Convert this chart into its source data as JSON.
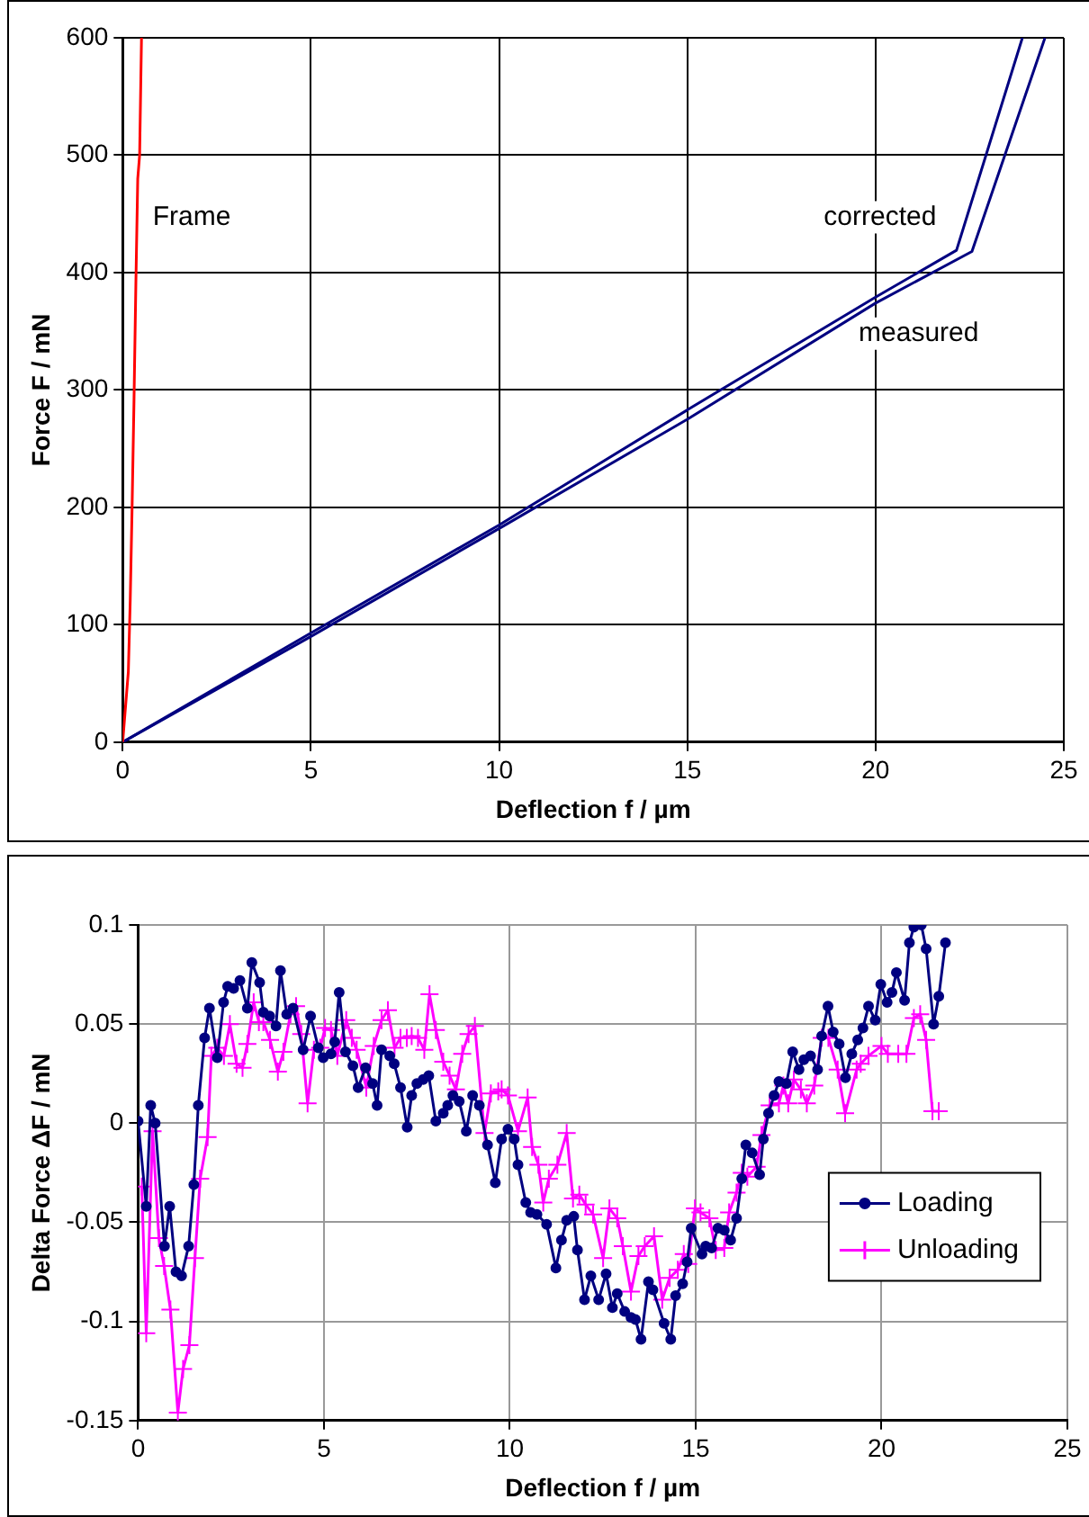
{
  "chart_data": [
    {
      "type": "line",
      "xlabel": "Deflection f / µm",
      "ylabel": "Force F / mN",
      "xlim": [
        0,
        25
      ],
      "ylim": [
        0,
        600
      ],
      "xticks": [
        0,
        5,
        10,
        15,
        20,
        25
      ],
      "yticks": [
        0,
        100,
        200,
        300,
        400,
        500,
        600
      ],
      "grid": true,
      "marker": "none",
      "line_style": "solid",
      "series": [
        {
          "name": "Frame",
          "color": "#ff0000",
          "x": [
            0,
            0.1,
            0.15,
            0.2,
            0.25,
            0.3,
            0.35,
            0.4,
            0.45,
            0.5
          ],
          "values": [
            0,
            40,
            60,
            120,
            200,
            290,
            390,
            480,
            500,
            600
          ]
        },
        {
          "name": "corrected",
          "color": "#000080",
          "x": [
            0,
            5,
            10,
            15,
            20,
            22.15,
            23.9
          ],
          "values": [
            0,
            93,
            185,
            283,
            379,
            419,
            600
          ]
        },
        {
          "name": "measured",
          "color": "#000080",
          "x": [
            0,
            5,
            10,
            15,
            20,
            22.56,
            24.5
          ],
          "values": [
            0,
            90,
            182,
            275,
            374,
            418,
            600
          ]
        }
      ]
    },
    {
      "type": "line",
      "xlabel": "Deflection f / µm",
      "ylabel": "Delta Force ΔF / mN",
      "xlim": [
        0,
        25
      ],
      "ylim": [
        -0.15,
        0.1
      ],
      "xticks": [
        0,
        5,
        10,
        15,
        20,
        25
      ],
      "yticks": [
        -0.15,
        -0.1,
        -0.05,
        0,
        0.05,
        0.1
      ],
      "grid": true,
      "legend": "right",
      "line_style": "solid",
      "series": [
        {
          "name": "Loading",
          "color": "#000080",
          "marker": "circle",
          "x": [
            0,
            0.22,
            0.34,
            0.46,
            0.71,
            0.85,
            1.02,
            1.17,
            1.36,
            1.5,
            1.62,
            1.79,
            1.92,
            2.13,
            2.3,
            2.41,
            2.57,
            2.74,
            2.94,
            3.06,
            3.27,
            3.37,
            3.54,
            3.71,
            3.83,
            4.0,
            4.17,
            4.44,
            4.64,
            4.85,
            4.98,
            5.19,
            5.29,
            5.41,
            5.58,
            5.78,
            5.92,
            6.12,
            6.31,
            6.43,
            6.55,
            6.77,
            6.89,
            7.06,
            7.24,
            7.36,
            7.5,
            7.67,
            7.82,
            8.01,
            8.21,
            8.33,
            8.47,
            8.64,
            8.83,
            9.0,
            9.18,
            9.4,
            9.61,
            9.78,
            9.95,
            10.12,
            10.22,
            10.43,
            10.56,
            10.73,
            10.99,
            11.24,
            11.39,
            11.53,
            11.72,
            11.82,
            12.01,
            12.18,
            12.39,
            12.59,
            12.76,
            12.89,
            13.09,
            13.26,
            13.38,
            13.53,
            13.73,
            13.85,
            14.15,
            14.33,
            14.46,
            14.65,
            14.77,
            14.88,
            15.17,
            15.27,
            15.43,
            15.6,
            15.77,
            15.94,
            16.1,
            16.24,
            16.35,
            16.52,
            16.72,
            16.82,
            16.96,
            17.11,
            17.24,
            17.44,
            17.61,
            17.78,
            17.91,
            18.09,
            18.28,
            18.39,
            18.56,
            18.7,
            18.86,
            19.03,
            19.2,
            19.36,
            19.5,
            19.65,
            19.83,
            19.98,
            20.15,
            20.28,
            20.4,
            20.62,
            20.75,
            20.87,
            21.07,
            21.2,
            21.4,
            21.54,
            21.72
          ],
          "values": [
            0.001,
            -0.042,
            0.009,
            0,
            -0.062,
            -0.042,
            -0.075,
            -0.077,
            -0.062,
            -0.031,
            0.009,
            0.043,
            0.058,
            0.033,
            0.061,
            0.069,
            0.068,
            0.072,
            0.058,
            0.081,
            0.071,
            0.056,
            0.054,
            0.049,
            0.077,
            0.055,
            0.058,
            0.037,
            0.054,
            0.038,
            0.033,
            0.035,
            0.041,
            0.066,
            0.036,
            0.029,
            0.018,
            0.028,
            0.02,
            0.009,
            0.037,
            0.034,
            0.03,
            0.018,
            -0.002,
            0.014,
            0.02,
            0.022,
            0.024,
            0.001,
            0.005,
            0.009,
            0.014,
            0.011,
            -0.004,
            0.014,
            0.009,
            -0.011,
            -0.03,
            -0.008,
            -0.003,
            -0.008,
            -0.021,
            -0.04,
            -0.045,
            -0.046,
            -0.051,
            -0.073,
            -0.059,
            -0.049,
            -0.047,
            -0.064,
            -0.089,
            -0.077,
            -0.089,
            -0.076,
            -0.093,
            -0.086,
            -0.095,
            -0.098,
            -0.099,
            -0.109,
            -0.08,
            -0.084,
            -0.101,
            -0.109,
            -0.087,
            -0.081,
            -0.07,
            -0.053,
            -0.066,
            -0.062,
            -0.063,
            -0.053,
            -0.054,
            -0.059,
            -0.048,
            -0.028,
            -0.011,
            -0.015,
            -0.026,
            -0.008,
            0.005,
            0.014,
            0.021,
            0.02,
            0.036,
            0.027,
            0.032,
            0.034,
            0.027,
            0.044,
            0.059,
            0.046,
            0.04,
            0.023,
            0.035,
            0.042,
            0.048,
            0.059,
            0.052,
            0.07,
            0.061,
            0.066,
            0.076,
            0.062,
            0.091,
            0.099,
            0.1,
            0.088,
            0.05,
            0.064,
            0.091
          ]
        },
        {
          "name": "Unloading",
          "color": "#ff00ff",
          "marker": "cross",
          "x": [
            0.1,
            0.22,
            0.39,
            0.56,
            0.7,
            0.87,
            1.07,
            1.21,
            1.38,
            1.53,
            1.67,
            1.87,
            1.97,
            2.13,
            2.31,
            2.47,
            2.65,
            2.81,
            2.94,
            3.11,
            3.25,
            3.37,
            3.55,
            3.76,
            3.91,
            4.1,
            4.25,
            4.39,
            4.56,
            4.73,
            4.9,
            5.03,
            5.19,
            5.36,
            5.6,
            5.75,
            5.88,
            6.14,
            6.34,
            6.55,
            6.72,
            6.9,
            7.06,
            7.23,
            7.36,
            7.53,
            7.7,
            7.84,
            8.01,
            8.21,
            8.38,
            8.55,
            8.72,
            8.89,
            9.06,
            9.32,
            9.49,
            9.69,
            9.78,
            9.95,
            10.22,
            10.48,
            10.6,
            10.77,
            10.9,
            11.05,
            11.28,
            11.53,
            11.7,
            11.87,
            12.04,
            12.24,
            12.51,
            12.68,
            12.89,
            13.04,
            13.26,
            13.46,
            13.63,
            13.88,
            14.1,
            14.3,
            14.52,
            14.68,
            14.8,
            14.98,
            15.13,
            15.37,
            15.54,
            15.77,
            15.9,
            16.1,
            16.24,
            16.39,
            16.64,
            16.77,
            16.99,
            17.24,
            17.36,
            17.49,
            17.64,
            17.83,
            17.99,
            18.19,
            18.39,
            18.57,
            18.82,
            19.02,
            19.33,
            19.44,
            19.65,
            20.0,
            20.17,
            20.45,
            20.67,
            20.87,
            21.04,
            21.2,
            21.37,
            21.54
          ],
          "values": [
            -0.032,
            -0.106,
            -0.004,
            -0.058,
            -0.072,
            -0.094,
            -0.146,
            -0.124,
            -0.112,
            -0.068,
            -0.028,
            -0.007,
            0.034,
            0.038,
            0.034,
            0.05,
            0.03,
            0.028,
            0.04,
            0.061,
            0.051,
            0.051,
            0.042,
            0.026,
            0.036,
            0.055,
            0.059,
            0.045,
            0.01,
            0.037,
            0.038,
            0.048,
            0.047,
            0.034,
            0.052,
            0.043,
            0.037,
            0.018,
            0.039,
            0.052,
            0.057,
            0.038,
            0.043,
            0.043,
            0.044,
            0.043,
            0.037,
            0.065,
            0.047,
            0.031,
            0.024,
            0.017,
            0.035,
            0.045,
            0.049,
            -0.005,
            0.015,
            0.016,
            0.017,
            0.014,
            -0.004,
            0.013,
            -0.012,
            -0.021,
            -0.04,
            -0.028,
            -0.021,
            -0.005,
            -0.038,
            -0.036,
            -0.041,
            -0.046,
            -0.068,
            -0.043,
            -0.048,
            -0.062,
            -0.085,
            -0.067,
            -0.062,
            -0.057,
            -0.089,
            -0.078,
            -0.074,
            -0.066,
            -0.071,
            -0.043,
            -0.045,
            -0.048,
            -0.064,
            -0.063,
            -0.045,
            -0.035,
            -0.025,
            -0.027,
            -0.022,
            -0.006,
            0.009,
            0.01,
            0.019,
            0.01,
            0.022,
            0.017,
            0.01,
            0.019,
            0.043,
            0.043,
            0.027,
            0.005,
            0.027,
            0.03,
            0.034,
            0.039,
            0.035,
            0.035,
            0.035,
            0.053,
            0.055,
            0.042,
            0.006,
            0.006
          ]
        }
      ]
    }
  ]
}
